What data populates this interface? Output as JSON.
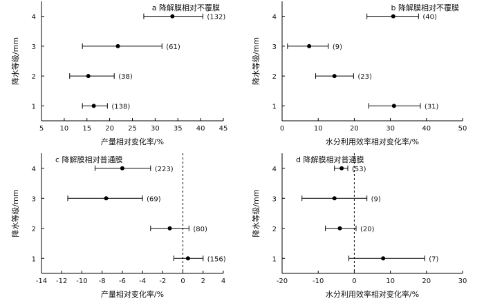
{
  "chart_data": [
    {
      "type": "errorbar",
      "title": "a 降解膜相对不覆膜",
      "xlabel": "产量相对变化率/%",
      "ylabel": "降水等级/mm",
      "xlim": [
        5,
        45
      ],
      "xticks": [
        5,
        10,
        15,
        20,
        25,
        30,
        35,
        40,
        45
      ],
      "ylim": [
        0.5,
        4.5
      ],
      "yticks": [
        1,
        2,
        3,
        4
      ],
      "zero_line": false,
      "points": [
        {
          "y": 4,
          "mean": 33.8,
          "low": 27.5,
          "high": 40.5,
          "n_label": "(132)"
        },
        {
          "y": 3,
          "mean": 21.8,
          "low": 14.0,
          "high": 31.5,
          "n_label": "(61)"
        },
        {
          "y": 2,
          "mean": 15.3,
          "low": 11.2,
          "high": 21.0,
          "n_label": "(38)"
        },
        {
          "y": 1,
          "mean": 16.5,
          "low": 14.0,
          "high": 19.5,
          "n_label": "(138)"
        }
      ]
    },
    {
      "type": "errorbar",
      "title": "b 降解膜相对不覆膜",
      "xlabel": "水分利用效率相对变化率/%",
      "ylabel": "降水等级/mm",
      "xlim": [
        0,
        50
      ],
      "xticks": [
        0,
        10,
        20,
        30,
        40,
        50
      ],
      "ylim": [
        0.5,
        4.5
      ],
      "yticks": [
        1,
        2,
        3,
        4
      ],
      "zero_line": false,
      "points": [
        {
          "y": 4,
          "mean": 30.8,
          "low": 23.5,
          "high": 37.8,
          "n_label": "(40)"
        },
        {
          "y": 3,
          "mean": 7.5,
          "low": 1.5,
          "high": 12.8,
          "n_label": "(9)"
        },
        {
          "y": 2,
          "mean": 14.5,
          "low": 9.3,
          "high": 19.8,
          "n_label": "(23)"
        },
        {
          "y": 1,
          "mean": 31.0,
          "low": 24.0,
          "high": 38.3,
          "n_label": "(31)"
        }
      ]
    },
    {
      "type": "errorbar",
      "title": "c 降解膜相对普通膜",
      "xlabel": "产量相对变化率/%",
      "ylabel": "降水等级/mm",
      "xlim": [
        -14,
        4
      ],
      "xticks": [
        -14,
        -12,
        -10,
        -8,
        -6,
        -4,
        -2,
        0,
        2,
        4
      ],
      "ylim": [
        0.5,
        4.5
      ],
      "yticks": [
        1,
        2,
        3,
        4
      ],
      "zero_line": true,
      "points": [
        {
          "y": 4,
          "mean": -6.0,
          "low": -8.7,
          "high": -3.2,
          "n_label": "(223)"
        },
        {
          "y": 3,
          "mean": -7.6,
          "low": -11.4,
          "high": -4.0,
          "n_label": "(69)"
        },
        {
          "y": 2,
          "mean": -1.3,
          "low": -3.2,
          "high": 0.6,
          "n_label": "(80)"
        },
        {
          "y": 1,
          "mean": 0.5,
          "low": -0.9,
          "high": 2.0,
          "n_label": "(156)"
        }
      ]
    },
    {
      "type": "errorbar",
      "title": "d 降解膜相对普通膜",
      "xlabel": "水分利用效率相对变化率/%",
      "ylabel": "降水等级/mm",
      "xlim": [
        -20,
        30
      ],
      "xticks": [
        -20,
        -10,
        0,
        10,
        20,
        30
      ],
      "ylim": [
        0.5,
        4.5
      ],
      "yticks": [
        1,
        2,
        3,
        4
      ],
      "zero_line": true,
      "points": [
        {
          "y": 4,
          "mean": -3.5,
          "low": -5.5,
          "high": -1.8,
          "n_label": "(53)"
        },
        {
          "y": 3,
          "mean": -5.5,
          "low": -14.5,
          "high": 3.5,
          "n_label": "(9)"
        },
        {
          "y": 2,
          "mean": -4.0,
          "low": -8.0,
          "high": 0.5,
          "n_label": "(20)"
        },
        {
          "y": 1,
          "mean": 8.0,
          "low": -1.5,
          "high": 19.5,
          "n_label": "(7)"
        }
      ]
    }
  ]
}
